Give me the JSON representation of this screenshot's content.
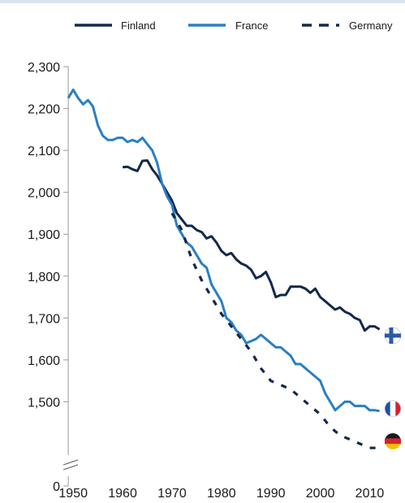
{
  "chart_data": {
    "type": "line",
    "title": "",
    "xlabel": "",
    "ylabel": "",
    "xlim": [
      1948,
      2016
    ],
    "ylim": [
      1400,
      2300
    ],
    "y_axis_break": true,
    "y_ticks": [
      {
        "value": 0,
        "label": "0"
      },
      {
        "value": 1500,
        "label": "1,500"
      },
      {
        "value": 1600,
        "label": "1,600"
      },
      {
        "value": 1700,
        "label": "1,700"
      },
      {
        "value": 1800,
        "label": "1,800"
      },
      {
        "value": 1900,
        "label": "1,900"
      },
      {
        "value": 2000,
        "label": "2,000"
      },
      {
        "value": 2100,
        "label": "2,100"
      },
      {
        "value": 2200,
        "label": "2,200"
      },
      {
        "value": 2300,
        "label": "2,300"
      }
    ],
    "x_ticks": [
      {
        "value": 1950,
        "label": "1950"
      },
      {
        "value": 1960,
        "label": "1960"
      },
      {
        "value": 1970,
        "label": "1970"
      },
      {
        "value": 1980,
        "label": "1980"
      },
      {
        "value": 1990,
        "label": "1990"
      },
      {
        "value": 2000,
        "label": "2000"
      },
      {
        "value": 2010,
        "label": "2010"
      }
    ],
    "legend_position": "top",
    "grid": false,
    "series": [
      {
        "name": "Finland",
        "color": "#13284b",
        "style": "solid",
        "flag": "finland-flag",
        "x": [
          1960,
          1961,
          1962,
          1963,
          1964,
          1965,
          1966,
          1967,
          1968,
          1969,
          1970,
          1971,
          1972,
          1973,
          1974,
          1975,
          1976,
          1977,
          1978,
          1979,
          1980,
          1981,
          1982,
          1983,
          1984,
          1985,
          1986,
          1987,
          1988,
          1989,
          1990,
          1991,
          1992,
          1993,
          1994,
          1995,
          1996,
          1997,
          1998,
          1999,
          2000,
          2001,
          2002,
          2003,
          2004,
          2005,
          2006,
          2007,
          2008,
          2009,
          2010,
          2011,
          2012
        ],
        "y": [
          2060,
          2061,
          2055,
          2051,
          2075,
          2076,
          2055,
          2040,
          2020,
          2000,
          1980,
          1950,
          1935,
          1920,
          1920,
          1910,
          1905,
          1890,
          1895,
          1880,
          1860,
          1850,
          1855,
          1840,
          1830,
          1825,
          1815,
          1795,
          1800,
          1810,
          1785,
          1750,
          1755,
          1755,
          1775,
          1775,
          1775,
          1770,
          1760,
          1770,
          1750,
          1740,
          1730,
          1720,
          1725,
          1715,
          1710,
          1700,
          1695,
          1670,
          1680,
          1680,
          1673
        ]
      },
      {
        "name": "France",
        "color": "#2a7fc2",
        "style": "solid",
        "flag": "france-flag",
        "x": [
          1949,
          1950,
          1951,
          1952,
          1953,
          1954,
          1955,
          1956,
          1957,
          1958,
          1959,
          1960,
          1961,
          1962,
          1963,
          1964,
          1965,
          1966,
          1967,
          1968,
          1969,
          1970,
          1971,
          1972,
          1973,
          1974,
          1975,
          1976,
          1977,
          1978,
          1979,
          1980,
          1981,
          1982,
          1983,
          1984,
          1985,
          1986,
          1987,
          1988,
          1989,
          1990,
          1991,
          1992,
          1993,
          1994,
          1995,
          1996,
          1997,
          1998,
          1999,
          2000,
          2001,
          2002,
          2003,
          2004,
          2005,
          2006,
          2007,
          2008,
          2009,
          2010,
          2011,
          2012
        ],
        "y": [
          2225,
          2245,
          2225,
          2210,
          2220,
          2205,
          2160,
          2135,
          2125,
          2125,
          2130,
          2130,
          2120,
          2125,
          2120,
          2130,
          2115,
          2100,
          2070,
          2020,
          1990,
          1970,
          1920,
          1900,
          1880,
          1870,
          1850,
          1830,
          1820,
          1780,
          1760,
          1740,
          1700,
          1690,
          1670,
          1660,
          1640,
          1645,
          1650,
          1660,
          1650,
          1640,
          1630,
          1630,
          1620,
          1610,
          1590,
          1590,
          1580,
          1570,
          1560,
          1550,
          1520,
          1500,
          1480,
          1490,
          1500,
          1500,
          1490,
          1490,
          1490,
          1480,
          1480,
          1478
        ]
      },
      {
        "name": "Germany",
        "color": "#13284b",
        "style": "dashed",
        "flag": "germany-flag",
        "x": [
          1970,
          1972,
          1974,
          1976,
          1978,
          1980,
          1982,
          1984,
          1986,
          1988,
          1990,
          1992,
          1994,
          1996,
          1998,
          2000,
          2002,
          2004,
          2006,
          2008,
          2010,
          2012
        ],
        "y": [
          1950,
          1910,
          1840,
          1790,
          1750,
          1710,
          1680,
          1650,
          1620,
          1580,
          1550,
          1540,
          1530,
          1510,
          1490,
          1470,
          1440,
          1420,
          1410,
          1400,
          1390,
          1390
        ]
      }
    ]
  }
}
